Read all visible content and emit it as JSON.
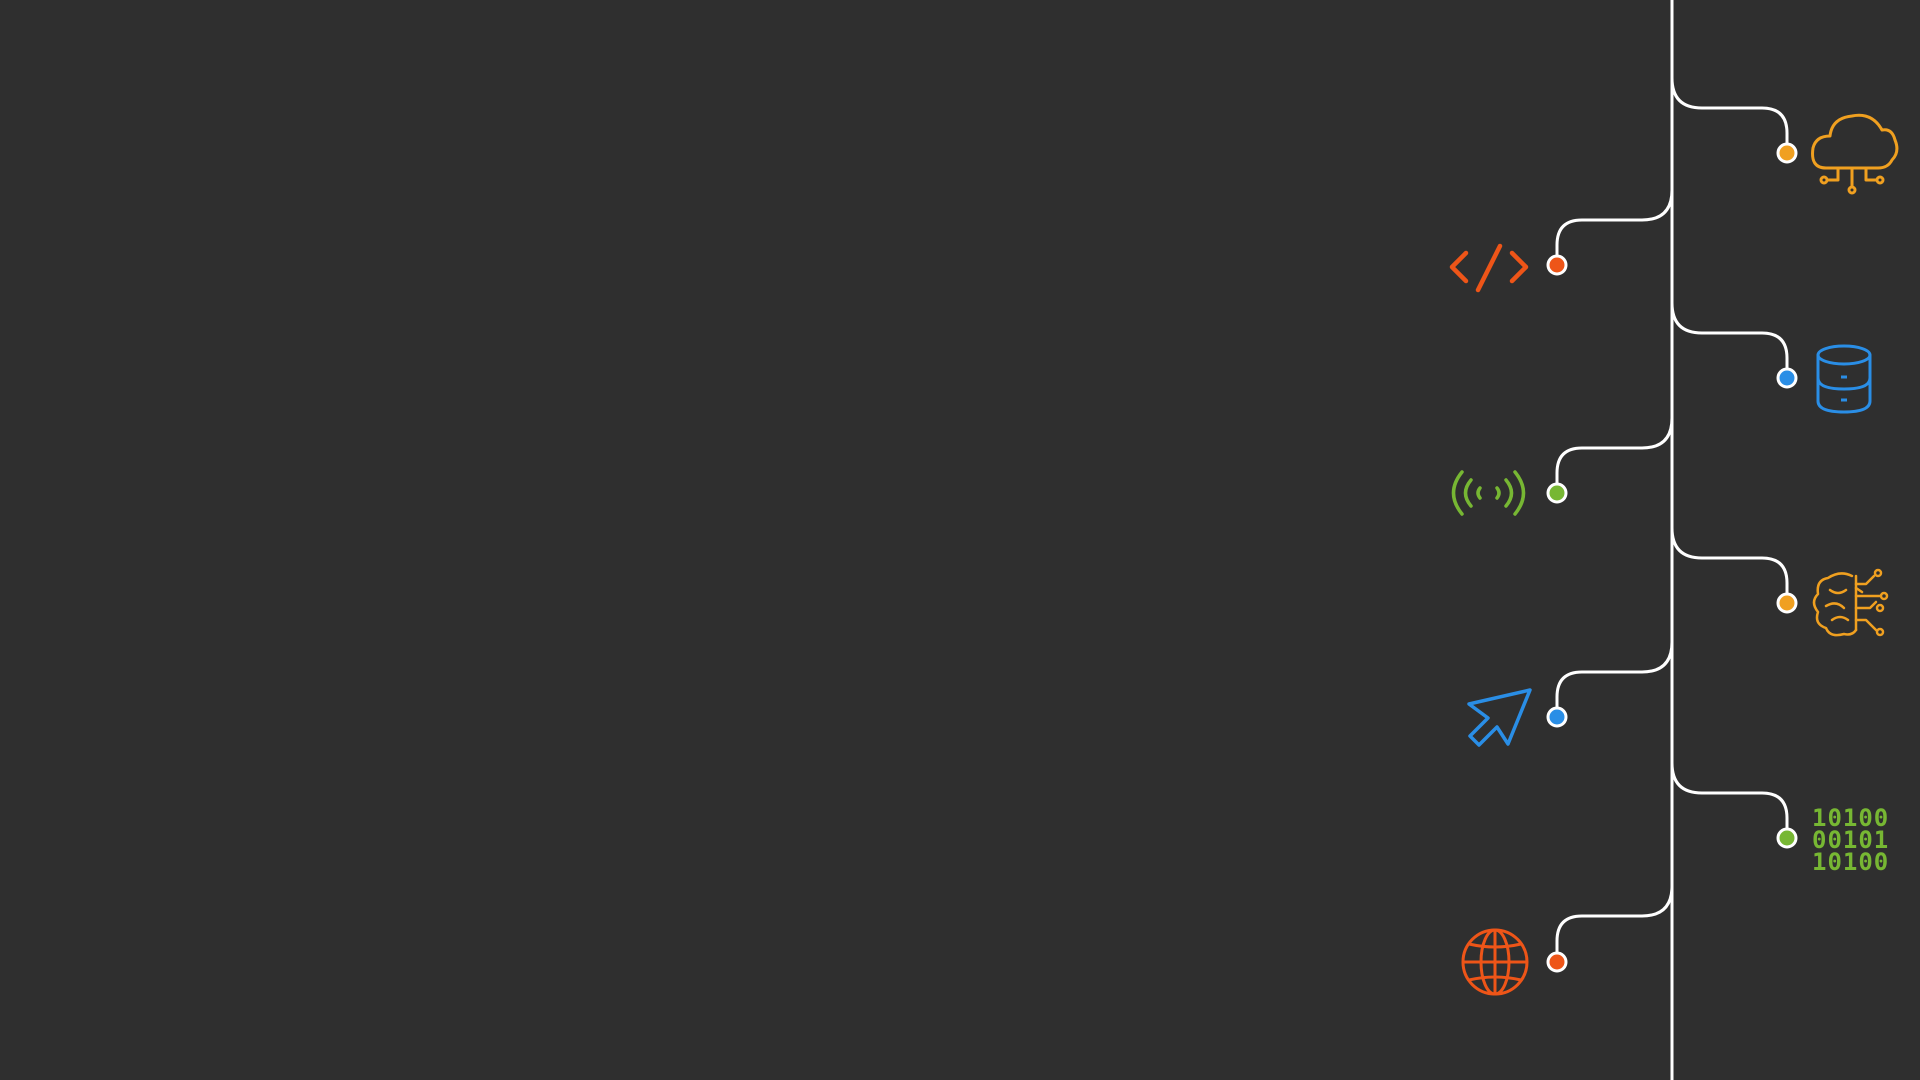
{
  "colors": {
    "background": "#2f2f2f",
    "line": "#ffffff",
    "orange": "#f0a020",
    "red_orange": "#ee5518",
    "blue": "#2a8ee6",
    "green": "#77b733"
  },
  "nodes": [
    {
      "id": "cloud",
      "side": "right",
      "color": "orange",
      "icon": "cloud-network-icon"
    },
    {
      "id": "code",
      "side": "left",
      "color": "red_orange",
      "icon": "code-brackets-icon"
    },
    {
      "id": "database",
      "side": "right",
      "color": "blue",
      "icon": "database-icon"
    },
    {
      "id": "wireless",
      "side": "left",
      "color": "green",
      "icon": "wireless-signal-icon"
    },
    {
      "id": "ai-brain",
      "side": "right",
      "color": "orange",
      "icon": "ai-brain-circuit-icon"
    },
    {
      "id": "cursor",
      "side": "left",
      "color": "blue",
      "icon": "cursor-arrow-icon"
    },
    {
      "id": "binary",
      "side": "right",
      "color": "green",
      "icon": "binary-code-icon"
    },
    {
      "id": "globe",
      "side": "left",
      "color": "red_orange",
      "icon": "globe-icon"
    }
  ],
  "binary_rows": [
    "10100",
    "00101",
    "10100"
  ]
}
